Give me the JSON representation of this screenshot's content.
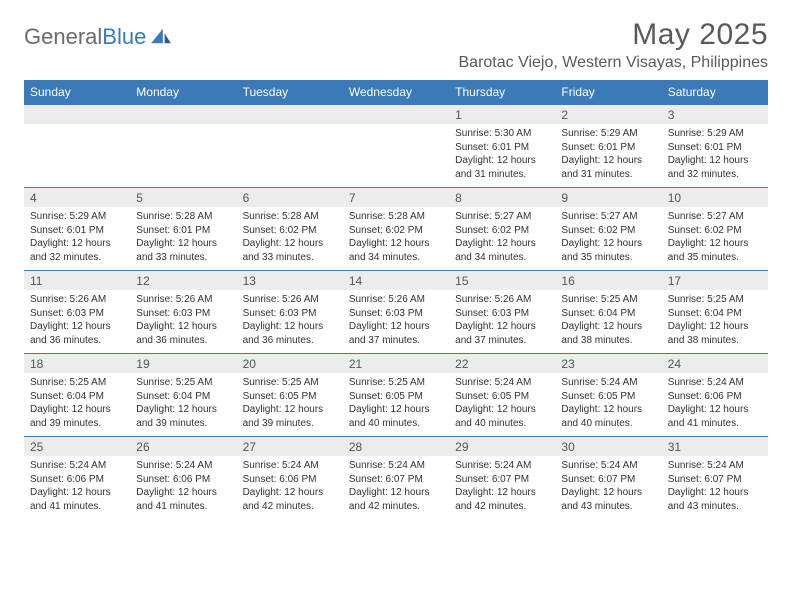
{
  "brand": {
    "textGray": "General",
    "textBlue": "Blue"
  },
  "title": {
    "month": "May 2025",
    "location": "Barotac Viejo, Western Visayas, Philippines"
  },
  "colors": {
    "headerBg": "#3b79b7",
    "headerText": "#ffffff",
    "dayNumBg": "#ececec",
    "ruleColor": "#3b79b7",
    "bodyText": "#333333",
    "titleText": "#5a5a5a"
  },
  "layout": {
    "columns": 7,
    "rows": 5,
    "widthPx": 792,
    "heightPx": 612
  },
  "weekdays": [
    "Sunday",
    "Monday",
    "Tuesday",
    "Wednesday",
    "Thursday",
    "Friday",
    "Saturday"
  ],
  "weeks": [
    [
      {
        "day": "",
        "lines": []
      },
      {
        "day": "",
        "lines": []
      },
      {
        "day": "",
        "lines": []
      },
      {
        "day": "",
        "lines": []
      },
      {
        "day": "1",
        "lines": [
          "Sunrise: 5:30 AM",
          "Sunset: 6:01 PM",
          "Daylight: 12 hours",
          "and 31 minutes."
        ]
      },
      {
        "day": "2",
        "lines": [
          "Sunrise: 5:29 AM",
          "Sunset: 6:01 PM",
          "Daylight: 12 hours",
          "and 31 minutes."
        ]
      },
      {
        "day": "3",
        "lines": [
          "Sunrise: 5:29 AM",
          "Sunset: 6:01 PM",
          "Daylight: 12 hours",
          "and 32 minutes."
        ]
      }
    ],
    [
      {
        "day": "4",
        "lines": [
          "Sunrise: 5:29 AM",
          "Sunset: 6:01 PM",
          "Daylight: 12 hours",
          "and 32 minutes."
        ]
      },
      {
        "day": "5",
        "lines": [
          "Sunrise: 5:28 AM",
          "Sunset: 6:01 PM",
          "Daylight: 12 hours",
          "and 33 minutes."
        ]
      },
      {
        "day": "6",
        "lines": [
          "Sunrise: 5:28 AM",
          "Sunset: 6:02 PM",
          "Daylight: 12 hours",
          "and 33 minutes."
        ]
      },
      {
        "day": "7",
        "lines": [
          "Sunrise: 5:28 AM",
          "Sunset: 6:02 PM",
          "Daylight: 12 hours",
          "and 34 minutes."
        ]
      },
      {
        "day": "8",
        "lines": [
          "Sunrise: 5:27 AM",
          "Sunset: 6:02 PM",
          "Daylight: 12 hours",
          "and 34 minutes."
        ]
      },
      {
        "day": "9",
        "lines": [
          "Sunrise: 5:27 AM",
          "Sunset: 6:02 PM",
          "Daylight: 12 hours",
          "and 35 minutes."
        ]
      },
      {
        "day": "10",
        "lines": [
          "Sunrise: 5:27 AM",
          "Sunset: 6:02 PM",
          "Daylight: 12 hours",
          "and 35 minutes."
        ]
      }
    ],
    [
      {
        "day": "11",
        "lines": [
          "Sunrise: 5:26 AM",
          "Sunset: 6:03 PM",
          "Daylight: 12 hours",
          "and 36 minutes."
        ]
      },
      {
        "day": "12",
        "lines": [
          "Sunrise: 5:26 AM",
          "Sunset: 6:03 PM",
          "Daylight: 12 hours",
          "and 36 minutes."
        ]
      },
      {
        "day": "13",
        "lines": [
          "Sunrise: 5:26 AM",
          "Sunset: 6:03 PM",
          "Daylight: 12 hours",
          "and 36 minutes."
        ]
      },
      {
        "day": "14",
        "lines": [
          "Sunrise: 5:26 AM",
          "Sunset: 6:03 PM",
          "Daylight: 12 hours",
          "and 37 minutes."
        ]
      },
      {
        "day": "15",
        "lines": [
          "Sunrise: 5:26 AM",
          "Sunset: 6:03 PM",
          "Daylight: 12 hours",
          "and 37 minutes."
        ]
      },
      {
        "day": "16",
        "lines": [
          "Sunrise: 5:25 AM",
          "Sunset: 6:04 PM",
          "Daylight: 12 hours",
          "and 38 minutes."
        ]
      },
      {
        "day": "17",
        "lines": [
          "Sunrise: 5:25 AM",
          "Sunset: 6:04 PM",
          "Daylight: 12 hours",
          "and 38 minutes."
        ]
      }
    ],
    [
      {
        "day": "18",
        "lines": [
          "Sunrise: 5:25 AM",
          "Sunset: 6:04 PM",
          "Daylight: 12 hours",
          "and 39 minutes."
        ]
      },
      {
        "day": "19",
        "lines": [
          "Sunrise: 5:25 AM",
          "Sunset: 6:04 PM",
          "Daylight: 12 hours",
          "and 39 minutes."
        ]
      },
      {
        "day": "20",
        "lines": [
          "Sunrise: 5:25 AM",
          "Sunset: 6:05 PM",
          "Daylight: 12 hours",
          "and 39 minutes."
        ]
      },
      {
        "day": "21",
        "lines": [
          "Sunrise: 5:25 AM",
          "Sunset: 6:05 PM",
          "Daylight: 12 hours",
          "and 40 minutes."
        ]
      },
      {
        "day": "22",
        "lines": [
          "Sunrise: 5:24 AM",
          "Sunset: 6:05 PM",
          "Daylight: 12 hours",
          "and 40 minutes."
        ]
      },
      {
        "day": "23",
        "lines": [
          "Sunrise: 5:24 AM",
          "Sunset: 6:05 PM",
          "Daylight: 12 hours",
          "and 40 minutes."
        ]
      },
      {
        "day": "24",
        "lines": [
          "Sunrise: 5:24 AM",
          "Sunset: 6:06 PM",
          "Daylight: 12 hours",
          "and 41 minutes."
        ]
      }
    ],
    [
      {
        "day": "25",
        "lines": [
          "Sunrise: 5:24 AM",
          "Sunset: 6:06 PM",
          "Daylight: 12 hours",
          "and 41 minutes."
        ]
      },
      {
        "day": "26",
        "lines": [
          "Sunrise: 5:24 AM",
          "Sunset: 6:06 PM",
          "Daylight: 12 hours",
          "and 41 minutes."
        ]
      },
      {
        "day": "27",
        "lines": [
          "Sunrise: 5:24 AM",
          "Sunset: 6:06 PM",
          "Daylight: 12 hours",
          "and 42 minutes."
        ]
      },
      {
        "day": "28",
        "lines": [
          "Sunrise: 5:24 AM",
          "Sunset: 6:07 PM",
          "Daylight: 12 hours",
          "and 42 minutes."
        ]
      },
      {
        "day": "29",
        "lines": [
          "Sunrise: 5:24 AM",
          "Sunset: 6:07 PM",
          "Daylight: 12 hours",
          "and 42 minutes."
        ]
      },
      {
        "day": "30",
        "lines": [
          "Sunrise: 5:24 AM",
          "Sunset: 6:07 PM",
          "Daylight: 12 hours",
          "and 43 minutes."
        ]
      },
      {
        "day": "31",
        "lines": [
          "Sunrise: 5:24 AM",
          "Sunset: 6:07 PM",
          "Daylight: 12 hours",
          "and 43 minutes."
        ]
      }
    ]
  ]
}
